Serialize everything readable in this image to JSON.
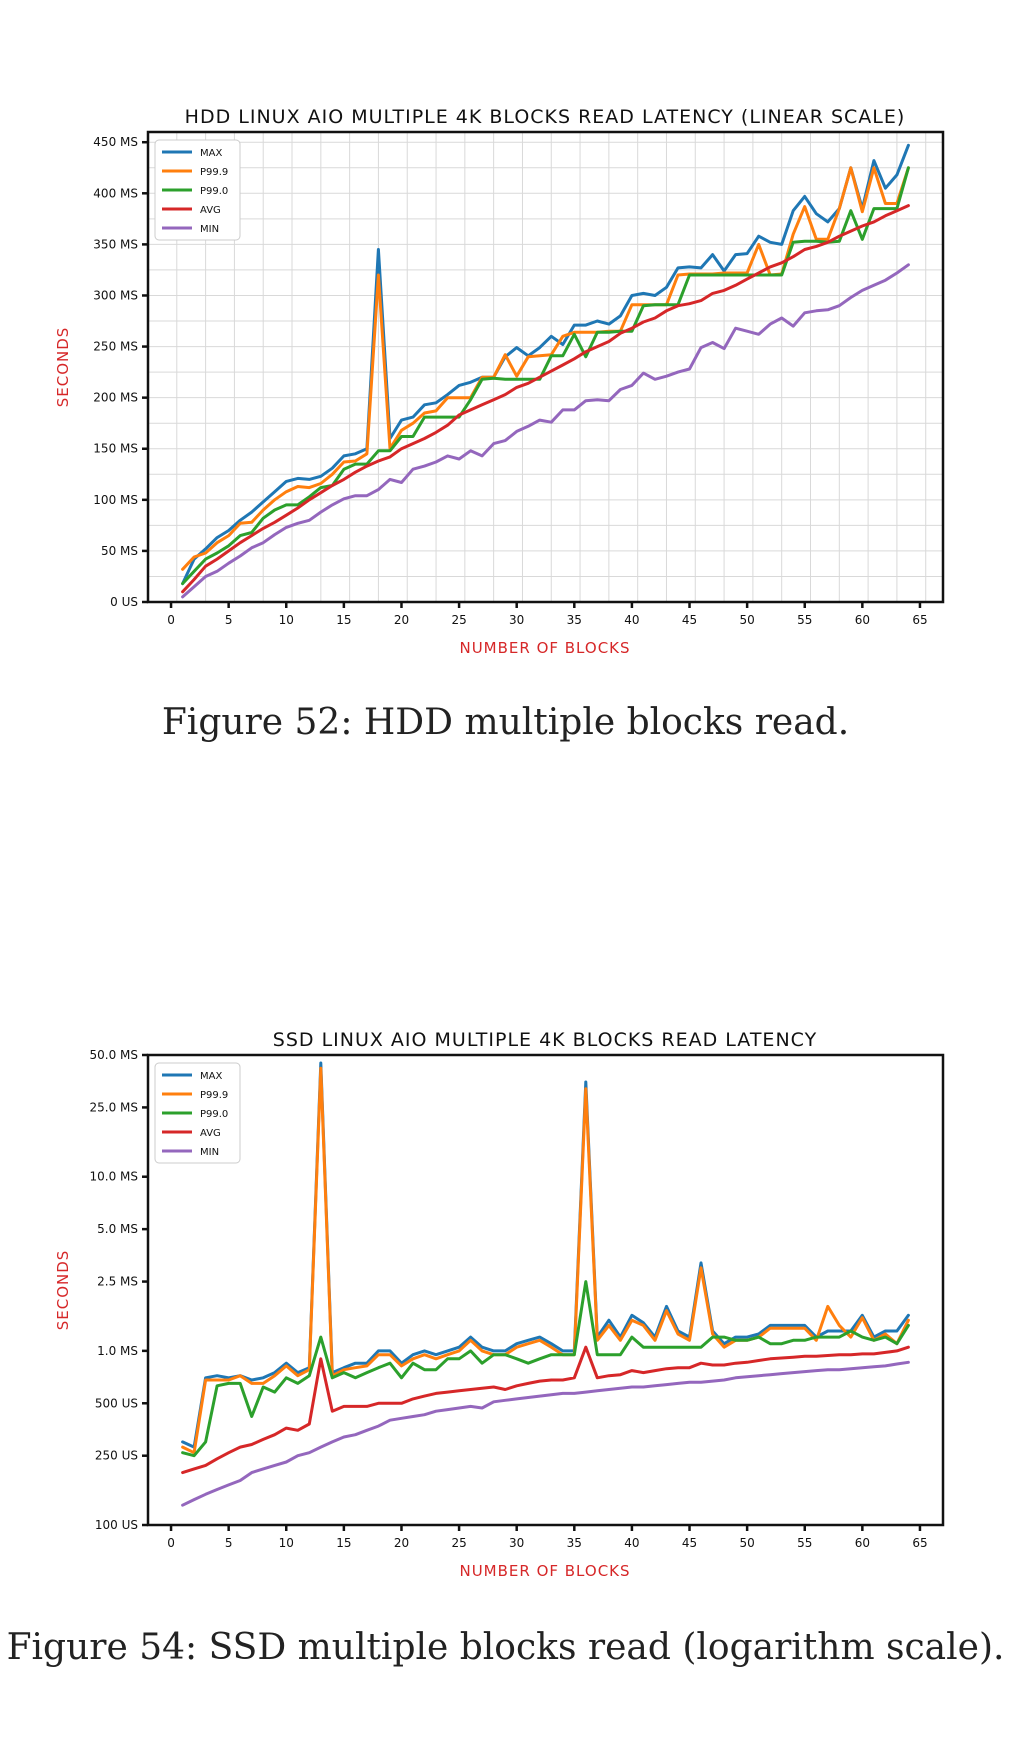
{
  "captions": {
    "fig52": "Figure 52: HDD multiple blocks read.",
    "fig54": "Figure 54: SSD multiple blocks read (logarithm scale)."
  },
  "chart_data": [
    {
      "type": "line",
      "title": "HDD LINUX AIO MULTIPLE 4K BLOCKS READ LATENCY (LINEAR SCALE)",
      "xlabel": "NUMBER OF BLOCKS",
      "ylabel": "SECONDS",
      "yscale": "linear",
      "xlim": [
        -2,
        67
      ],
      "ylim": [
        0,
        0.46
      ],
      "grid": true,
      "legend": "top-left",
      "xticks": [
        0,
        5,
        10,
        15,
        20,
        25,
        30,
        35,
        40,
        45,
        50,
        55,
        60,
        65
      ],
      "xtick_labels": [
        "0",
        "5",
        "10",
        "15",
        "20",
        "25",
        "30",
        "35",
        "40",
        "45",
        "50",
        "55",
        "60",
        "65"
      ],
      "yticks": [
        0,
        0.05,
        0.1,
        0.15,
        0.2,
        0.25,
        0.3,
        0.35,
        0.4,
        0.45
      ],
      "ytick_labels": [
        "0 US",
        "50 MS",
        "100 MS",
        "150 MS",
        "200 MS",
        "250 MS",
        "300 MS",
        "350 MS",
        "400 MS",
        "450 MS"
      ],
      "x_start": 1,
      "series": [
        {
          "name": "MAX",
          "color": "#1f77b4",
          "values": [
            0.018,
            0.042,
            0.052,
            0.063,
            0.07,
            0.08,
            0.088,
            0.098,
            0.108,
            0.118,
            0.121,
            0.12,
            0.123,
            0.131,
            0.143,
            0.145,
            0.15,
            0.345,
            0.16,
            0.178,
            0.181,
            0.193,
            0.195,
            0.203,
            0.212,
            0.215,
            0.22,
            0.22,
            0.24,
            0.249,
            0.241,
            0.249,
            0.26,
            0.252,
            0.271,
            0.271,
            0.275,
            0.272,
            0.28,
            0.3,
            0.302,
            0.3,
            0.308,
            0.327,
            0.328,
            0.327,
            0.34,
            0.324,
            0.34,
            0.341,
            0.358,
            0.352,
            0.35,
            0.383,
            0.397,
            0.38,
            0.372,
            0.385,
            0.425,
            0.385,
            0.432,
            0.405,
            0.418,
            0.447
          ]
        },
        {
          "name": "P99.9",
          "color": "#ff7f0e",
          "values": [
            0.032,
            0.044,
            0.048,
            0.058,
            0.065,
            0.077,
            0.078,
            0.09,
            0.1,
            0.108,
            0.113,
            0.112,
            0.116,
            0.125,
            0.137,
            0.138,
            0.145,
            0.32,
            0.15,
            0.168,
            0.175,
            0.185,
            0.187,
            0.2,
            0.2,
            0.2,
            0.22,
            0.22,
            0.242,
            0.221,
            0.24,
            0.241,
            0.242,
            0.26,
            0.264,
            0.264,
            0.264,
            0.265,
            0.265,
            0.291,
            0.291,
            0.291,
            0.291,
            0.32,
            0.321,
            0.321,
            0.321,
            0.322,
            0.322,
            0.322,
            0.35,
            0.32,
            0.321,
            0.36,
            0.387,
            0.355,
            0.355,
            0.385,
            0.425,
            0.382,
            0.425,
            0.39,
            0.39,
            0.425
          ]
        },
        {
          "name": "P99.0",
          "color": "#2ca02c",
          "values": [
            0.018,
            0.03,
            0.042,
            0.048,
            0.055,
            0.065,
            0.068,
            0.082,
            0.09,
            0.095,
            0.095,
            0.103,
            0.112,
            0.114,
            0.13,
            0.135,
            0.135,
            0.148,
            0.148,
            0.162,
            0.162,
            0.181,
            0.181,
            0.181,
            0.181,
            0.198,
            0.218,
            0.219,
            0.218,
            0.218,
            0.218,
            0.218,
            0.241,
            0.241,
            0.262,
            0.24,
            0.264,
            0.264,
            0.265,
            0.265,
            0.29,
            0.291,
            0.291,
            0.291,
            0.32,
            0.32,
            0.32,
            0.32,
            0.32,
            0.32,
            0.32,
            0.32,
            0.32,
            0.352,
            0.353,
            0.353,
            0.352,
            0.353,
            0.383,
            0.355,
            0.385,
            0.385,
            0.385,
            0.425
          ]
        },
        {
          "name": "AVG",
          "color": "#d62728",
          "values": [
            0.01,
            0.022,
            0.035,
            0.042,
            0.05,
            0.058,
            0.065,
            0.072,
            0.078,
            0.085,
            0.092,
            0.1,
            0.107,
            0.114,
            0.12,
            0.127,
            0.133,
            0.138,
            0.142,
            0.15,
            0.155,
            0.16,
            0.166,
            0.173,
            0.183,
            0.188,
            0.193,
            0.198,
            0.203,
            0.21,
            0.214,
            0.22,
            0.226,
            0.232,
            0.238,
            0.245,
            0.25,
            0.255,
            0.263,
            0.268,
            0.274,
            0.278,
            0.285,
            0.29,
            0.292,
            0.295,
            0.302,
            0.305,
            0.31,
            0.316,
            0.322,
            0.328,
            0.332,
            0.338,
            0.345,
            0.348,
            0.352,
            0.358,
            0.363,
            0.368,
            0.372,
            0.378,
            0.383,
            0.388
          ]
        },
        {
          "name": "MIN",
          "color": "#9467bd",
          "values": [
            0.005,
            0.015,
            0.025,
            0.03,
            0.038,
            0.045,
            0.053,
            0.058,
            0.066,
            0.073,
            0.077,
            0.08,
            0.088,
            0.095,
            0.101,
            0.104,
            0.104,
            0.11,
            0.12,
            0.117,
            0.13,
            0.133,
            0.137,
            0.143,
            0.14,
            0.148,
            0.143,
            0.155,
            0.158,
            0.167,
            0.172,
            0.178,
            0.176,
            0.188,
            0.188,
            0.197,
            0.198,
            0.197,
            0.208,
            0.212,
            0.224,
            0.218,
            0.221,
            0.225,
            0.228,
            0.249,
            0.254,
            0.248,
            0.268,
            0.265,
            0.262,
            0.272,
            0.278,
            0.27,
            0.283,
            0.285,
            0.286,
            0.29,
            0.298,
            0.305,
            0.31,
            0.315,
            0.322,
            0.33
          ]
        }
      ]
    },
    {
      "type": "line",
      "title": "SSD LINUX AIO MULTIPLE 4K BLOCKS READ LATENCY",
      "xlabel": "NUMBER OF BLOCKS",
      "ylabel": "SECONDS",
      "yscale": "log",
      "xlim": [
        -2,
        67
      ],
      "ylim": [
        0.0001,
        0.05
      ],
      "grid": false,
      "legend": "top-left",
      "xticks": [
        0,
        5,
        10,
        15,
        20,
        25,
        30,
        35,
        40,
        45,
        50,
        55,
        60,
        65
      ],
      "xtick_labels": [
        "0",
        "5",
        "10",
        "15",
        "20",
        "25",
        "30",
        "35",
        "40",
        "45",
        "50",
        "55",
        "60",
        "65"
      ],
      "yticks": [
        0.0001,
        0.00025,
        0.0005,
        0.001,
        0.0025,
        0.005,
        0.01,
        0.025,
        0.05
      ],
      "ytick_labels": [
        "100 US",
        "250 US",
        "500 US",
        "1.0 MS",
        "2.5 MS",
        "5.0 MS",
        "10.0 MS",
        "25.0 MS",
        "50.0 MS"
      ],
      "x_start": 1,
      "series": [
        {
          "name": "MAX",
          "color": "#1f77b4",
          "values": [
            0.0003,
            0.00028,
            0.0007,
            0.00072,
            0.0007,
            0.00072,
            0.00068,
            0.0007,
            0.00075,
            0.00085,
            0.00075,
            0.0008,
            0.045,
            0.00075,
            0.0008,
            0.00085,
            0.00085,
            0.001,
            0.001,
            0.00085,
            0.00095,
            0.001,
            0.00095,
            0.001,
            0.00105,
            0.0012,
            0.00105,
            0.001,
            0.001,
            0.0011,
            0.00115,
            0.0012,
            0.0011,
            0.001,
            0.001,
            0.035,
            0.0012,
            0.0015,
            0.0012,
            0.0016,
            0.00145,
            0.0012,
            0.0018,
            0.0013,
            0.0012,
            0.0032,
            0.0013,
            0.0011,
            0.0012,
            0.0012,
            0.00125,
            0.0014,
            0.0014,
            0.0014,
            0.0014,
            0.0012,
            0.0013,
            0.0013,
            0.0013,
            0.0016,
            0.0012,
            0.0013,
            0.0013,
            0.0016
          ]
        },
        {
          "name": "P99.9",
          "color": "#ff7f0e",
          "values": [
            0.00028,
            0.00026,
            0.00068,
            0.00068,
            0.00068,
            0.00072,
            0.00065,
            0.00065,
            0.00072,
            0.00082,
            0.00072,
            0.00078,
            0.042,
            0.00072,
            0.00078,
            0.0008,
            0.00082,
            0.00095,
            0.00095,
            0.00082,
            0.0009,
            0.00095,
            0.0009,
            0.00095,
            0.001,
            0.00115,
            0.001,
            0.00095,
            0.00095,
            0.00105,
            0.0011,
            0.00115,
            0.00105,
            0.00095,
            0.00095,
            0.032,
            0.00115,
            0.0014,
            0.00115,
            0.0015,
            0.0014,
            0.00115,
            0.0017,
            0.00125,
            0.00115,
            0.003,
            0.00125,
            0.00105,
            0.00115,
            0.00115,
            0.0012,
            0.00135,
            0.00135,
            0.00135,
            0.00135,
            0.00115,
            0.0018,
            0.0014,
            0.0012,
            0.00155,
            0.00115,
            0.00125,
            0.0011,
            0.0015
          ]
        },
        {
          "name": "P99.0",
          "color": "#2ca02c",
          "values": [
            0.00026,
            0.00025,
            0.0003,
            0.00063,
            0.00065,
            0.00065,
            0.00042,
            0.00062,
            0.00058,
            0.0007,
            0.00065,
            0.00072,
            0.0012,
            0.0007,
            0.00075,
            0.0007,
            0.00075,
            0.0008,
            0.00085,
            0.0007,
            0.00085,
            0.00078,
            0.00078,
            0.0009,
            0.0009,
            0.001,
            0.00085,
            0.00095,
            0.00095,
            0.0009,
            0.00085,
            0.0009,
            0.00095,
            0.00095,
            0.00095,
            0.0025,
            0.00095,
            0.00095,
            0.00095,
            0.0012,
            0.00105,
            0.00105,
            0.00105,
            0.00105,
            0.00105,
            0.00105,
            0.0012,
            0.0012,
            0.00115,
            0.00115,
            0.0012,
            0.0011,
            0.0011,
            0.00115,
            0.00115,
            0.0012,
            0.0012,
            0.0012,
            0.0013,
            0.0012,
            0.00115,
            0.0012,
            0.0011,
            0.0014
          ]
        },
        {
          "name": "AVG",
          "color": "#d62728",
          "values": [
            0.0002,
            0.00021,
            0.00022,
            0.00024,
            0.00026,
            0.00028,
            0.00029,
            0.00031,
            0.00033,
            0.00036,
            0.00035,
            0.00038,
            0.0009,
            0.00045,
            0.00048,
            0.00048,
            0.00048,
            0.0005,
            0.0005,
            0.0005,
            0.00053,
            0.00055,
            0.00057,
            0.00058,
            0.00059,
            0.0006,
            0.00061,
            0.00062,
            0.0006,
            0.00063,
            0.00065,
            0.00067,
            0.00068,
            0.00068,
            0.0007,
            0.00105,
            0.0007,
            0.00072,
            0.00073,
            0.00077,
            0.00075,
            0.00077,
            0.00079,
            0.0008,
            0.0008,
            0.00085,
            0.00083,
            0.00083,
            0.00085,
            0.00086,
            0.00088,
            0.0009,
            0.00091,
            0.00092,
            0.00093,
            0.00093,
            0.00094,
            0.00095,
            0.00095,
            0.00096,
            0.00096,
            0.00098,
            0.001,
            0.00105
          ]
        },
        {
          "name": "MIN",
          "color": "#9467bd",
          "values": [
            0.00013,
            0.00014,
            0.00015,
            0.00016,
            0.00017,
            0.00018,
            0.0002,
            0.00021,
            0.00022,
            0.00023,
            0.00025,
            0.00026,
            0.00028,
            0.0003,
            0.00032,
            0.00033,
            0.00035,
            0.00037,
            0.0004,
            0.00041,
            0.00042,
            0.00043,
            0.00045,
            0.00046,
            0.00047,
            0.00048,
            0.00047,
            0.00051,
            0.00052,
            0.00053,
            0.00054,
            0.00055,
            0.00056,
            0.00057,
            0.00057,
            0.00058,
            0.00059,
            0.0006,
            0.00061,
            0.00062,
            0.00062,
            0.00063,
            0.00064,
            0.00065,
            0.00066,
            0.00066,
            0.00067,
            0.00068,
            0.0007,
            0.00071,
            0.00072,
            0.00073,
            0.00074,
            0.00075,
            0.00076,
            0.00077,
            0.00078,
            0.00078,
            0.00079,
            0.0008,
            0.00081,
            0.00082,
            0.00084,
            0.00086
          ]
        }
      ]
    }
  ]
}
